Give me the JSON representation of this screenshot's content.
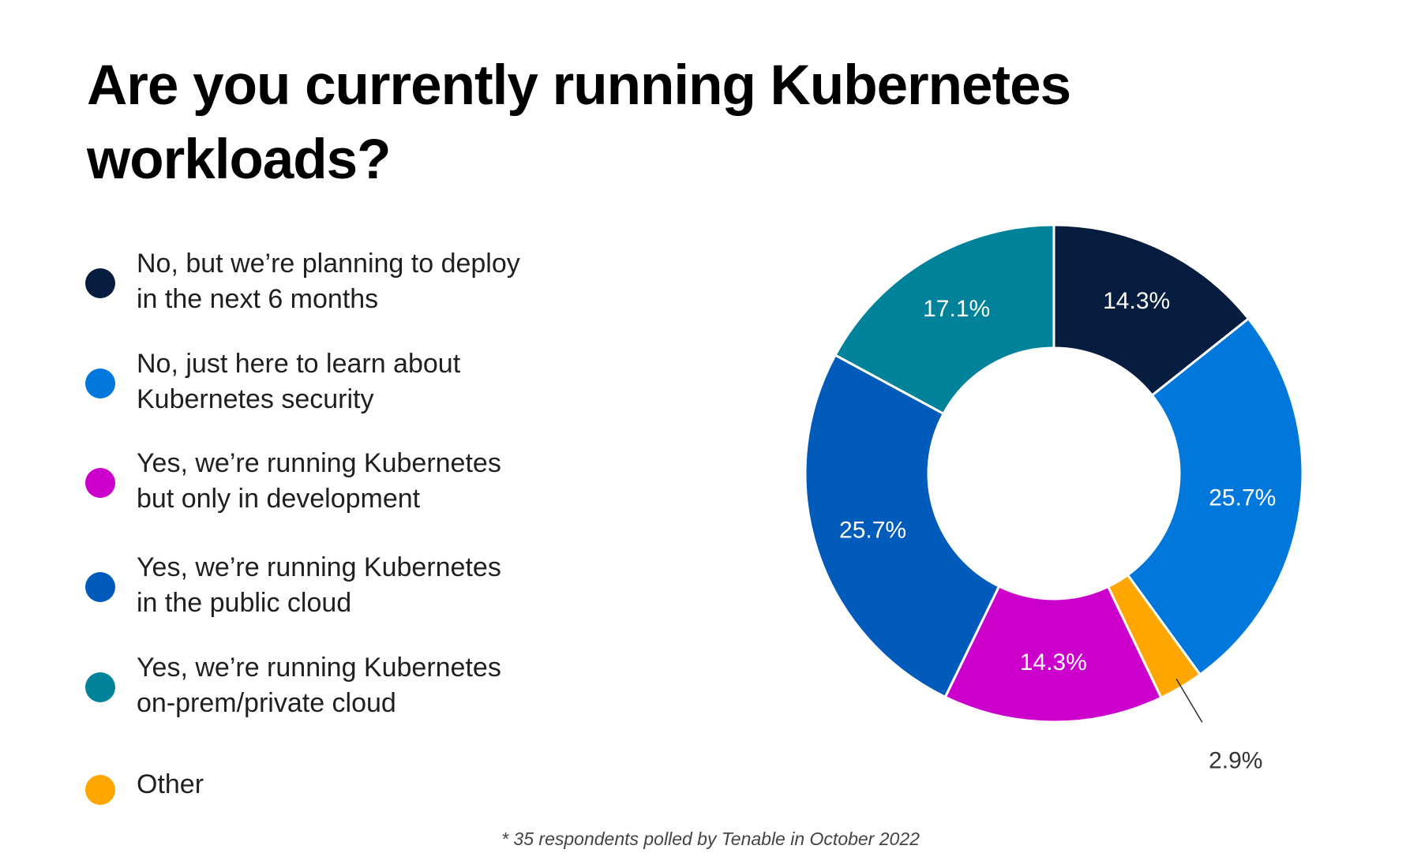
{
  "title": "Are you currently running Kubernetes workloads?",
  "footnote": "* 35 respondents polled by Tenable in October 2022",
  "chart_data": {
    "type": "pie",
    "variant": "donut",
    "title": "Are you currently running Kubernetes workloads?",
    "legend_position": "left",
    "slices": [
      {
        "label": "No, but we're planning to deploy in the next 6 months",
        "legend_lines": [
          "No, but we’re planning to deploy",
          "in the next 6 months"
        ],
        "value": 14.3,
        "value_label": "14.3%",
        "color": "#071d40"
      },
      {
        "label": "No, just here to learn about Kubernetes security",
        "legend_lines": [
          "No, just here to learn about",
          "Kubernetes security"
        ],
        "value": 25.7,
        "value_label": "25.7%",
        "color": "#0078db"
      },
      {
        "label": "Other",
        "legend_lines": [
          "Other"
        ],
        "value": 2.9,
        "value_label": "2.9%",
        "color": "#ffa600"
      },
      {
        "label": "Yes, we're running Kubernetes but only in development",
        "legend_lines": [
          "Yes, we’re running Kubernetes",
          "but only in development"
        ],
        "value": 14.3,
        "value_label": "14.3%",
        "color": "#cc00cc"
      },
      {
        "label": "Yes, we're running Kubernetes in the public cloud",
        "legend_lines": [
          "Yes, we’re running Kubernetes",
          "in the public cloud"
        ],
        "value": 25.7,
        "value_label": "25.7%",
        "color": "#005bbb"
      },
      {
        "label": "Yes, we're running Kubernetes on-prem/private cloud",
        "legend_lines": [
          "Yes, we’re running Kubernetes",
          "on-prem/private cloud"
        ],
        "value": 17.1,
        "value_label": "17.1%",
        "color": "#00839a"
      }
    ],
    "legend_order": [
      0,
      1,
      3,
      4,
      5,
      2
    ]
  }
}
